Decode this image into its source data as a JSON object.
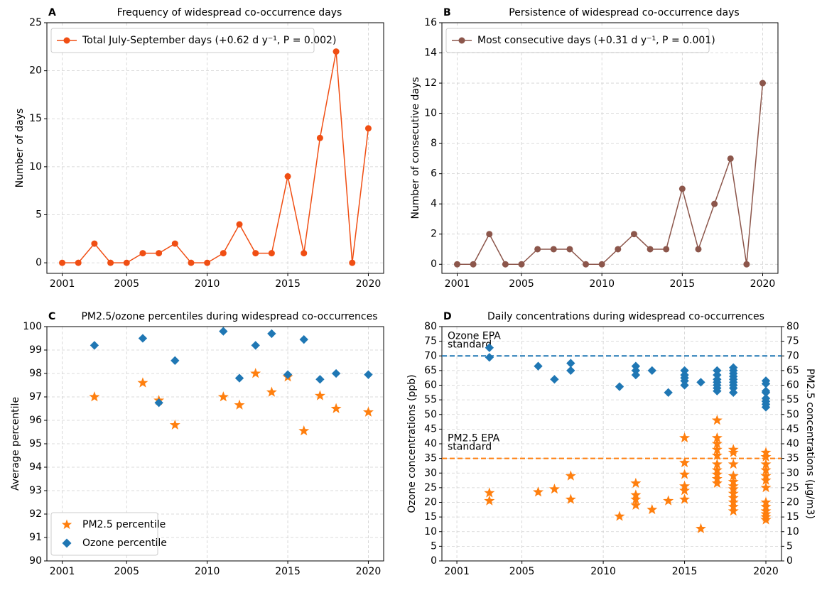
{
  "chart_data": [
    {
      "type": "line",
      "label": "A",
      "title": "Frequency of widespread co-occurrence days",
      "ylabel": "Number of days",
      "x": [
        2001,
        2002,
        2003,
        2004,
        2005,
        2006,
        2007,
        2008,
        2009,
        2010,
        2011,
        2012,
        2013,
        2014,
        2015,
        2016,
        2017,
        2018,
        2019,
        2020
      ],
      "series": [
        {
          "name": "Total July-September days (+0.62 d y⁻¹, P = 0.002)",
          "color": "#f04e13",
          "marker": "circle",
          "values": [
            0,
            0,
            2,
            0,
            0,
            1,
            1,
            2,
            0,
            0,
            1,
            4,
            1,
            1,
            9,
            1,
            13,
            22,
            0,
            14
          ]
        }
      ],
      "xlim": [
        2000.05,
        2020.95
      ],
      "xticks": [
        2001,
        2005,
        2010,
        2015,
        2020
      ],
      "ylim": [
        -1.1,
        25
      ],
      "yticks": [
        0,
        5,
        10,
        15,
        20,
        25
      ],
      "grid": true,
      "legend": "upper left"
    },
    {
      "type": "line",
      "label": "B",
      "title": "Persistence of widespread co-occurrence days",
      "ylabel": "Number of consecutive days",
      "x": [
        2001,
        2002,
        2003,
        2004,
        2005,
        2006,
        2007,
        2008,
        2009,
        2010,
        2011,
        2012,
        2013,
        2014,
        2015,
        2016,
        2017,
        2018,
        2019,
        2020
      ],
      "series": [
        {
          "name": "Most consecutive days (+0.31 d y⁻¹, P = 0.001)",
          "color": "#8c564b",
          "marker": "circle",
          "values": [
            0,
            0,
            2,
            0,
            0,
            1,
            1,
            1,
            0,
            0,
            1,
            2,
            1,
            1,
            5,
            1,
            4,
            7,
            0,
            12
          ]
        }
      ],
      "xlim": [
        2000.05,
        2020.95
      ],
      "xticks": [
        2001,
        2005,
        2010,
        2015,
        2020
      ],
      "ylim": [
        -0.6,
        16
      ],
      "yticks": [
        0,
        2,
        4,
        6,
        8,
        10,
        12,
        14,
        16
      ],
      "grid": true,
      "legend": "upper left"
    },
    {
      "type": "scatter",
      "label": "C",
      "title": "PM2.5/ozone percentiles during widespread co-occurrences",
      "ylabel": "Average percentile",
      "series": [
        {
          "name": "PM2.5 percentile",
          "color": "#ff7f0e",
          "marker": "star",
          "x": [
            2003,
            2006,
            2007,
            2008,
            2011,
            2012,
            2013,
            2014,
            2015,
            2016,
            2017,
            2018,
            2020
          ],
          "values": [
            97.0,
            97.6,
            96.85,
            95.8,
            97.0,
            96.65,
            98.0,
            97.2,
            97.85,
            95.55,
            97.05,
            96.5,
            96.35
          ]
        },
        {
          "name": "Ozone percentile",
          "color": "#1f77b4",
          "marker": "diamond",
          "x": [
            2003,
            2006,
            2007,
            2008,
            2011,
            2012,
            2013,
            2014,
            2015,
            2016,
            2017,
            2018,
            2020
          ],
          "values": [
            99.2,
            99.5,
            96.75,
            98.55,
            99.8,
            97.8,
            99.2,
            99.7,
            97.95,
            99.45,
            97.75,
            98.0,
            97.95
          ]
        }
      ],
      "xlim": [
        2000.05,
        2020.95
      ],
      "xticks": [
        2001,
        2005,
        2010,
        2015,
        2020
      ],
      "ylim": [
        90,
        100
      ],
      "yticks": [
        90,
        91,
        92,
        93,
        94,
        95,
        96,
        97,
        98,
        99,
        100
      ],
      "grid": true,
      "legend": "lower left"
    },
    {
      "type": "scatter",
      "label": "D",
      "title": "Daily concentrations during widespread co-occurrences",
      "ylabel": "Ozone concentrations (ppb)",
      "y2label": "PM2.5 concentrations (μg/m3)",
      "y_color": "#1f77b4",
      "y2_color": "#ff7f0e",
      "series": [
        {
          "color": "#1f77b4",
          "marker": "diamond",
          "axis": "y",
          "x": [
            2003,
            2003,
            2006,
            2007,
            2008,
            2008,
            2011,
            2012,
            2012,
            2012,
            2013,
            2014,
            2015,
            2015,
            2015,
            2015,
            2015,
            2016,
            2017,
            2017,
            2017,
            2017,
            2017,
            2017,
            2017,
            2018,
            2018,
            2018,
            2018,
            2018,
            2018,
            2018,
            2018,
            2018,
            2020,
            2020,
            2020,
            2020,
            2020,
            2020,
            2020,
            2020
          ],
          "values": [
            72.8,
            69.5,
            66.5,
            62,
            67.5,
            65,
            59.5,
            66.5,
            65,
            63.5,
            65,
            57.5,
            65,
            63.5,
            62.5,
            61.5,
            60,
            61,
            65,
            63.5,
            62,
            61,
            60,
            59,
            58,
            66,
            65,
            64,
            63,
            62,
            61,
            60,
            59,
            57.5,
            61.5,
            60.5,
            58,
            57.5,
            55.5,
            54.5,
            53.5,
            52.5
          ]
        },
        {
          "color": "#ff7f0e",
          "marker": "star",
          "axis": "y2",
          "x": [
            2003,
            2003,
            2006,
            2007,
            2008,
            2008,
            2011,
            2012,
            2012,
            2012,
            2012,
            2013,
            2014,
            2015,
            2015,
            2015,
            2015,
            2015,
            2015,
            2016,
            2017,
            2017,
            2017,
            2017,
            2017,
            2017,
            2017,
            2017,
            2017,
            2017,
            2018,
            2018,
            2018,
            2018,
            2018,
            2018,
            2018,
            2018,
            2018,
            2018,
            2018,
            2018,
            2020,
            2020,
            2020,
            2020,
            2020,
            2020,
            2020,
            2020,
            2020,
            2020,
            2020,
            2020,
            2020
          ],
          "values": [
            23.2,
            20.5,
            23.5,
            24.5,
            29,
            21,
            15.2,
            26.5,
            22.5,
            21,
            19,
            17.5,
            20.5,
            42,
            33.5,
            29.5,
            25.5,
            24,
            21,
            11,
            48,
            42,
            40,
            38,
            36,
            33,
            31,
            29.5,
            28,
            26.5,
            38,
            37,
            33,
            29,
            27,
            25.5,
            24.5,
            23,
            21.5,
            20,
            18.5,
            17,
            37,
            35.5,
            33,
            31,
            29,
            27.5,
            25,
            20,
            18.5,
            17,
            16,
            15,
            14
          ]
        }
      ],
      "reference_lines": [
        {
          "value": 70,
          "axis": "y",
          "color": "#1f77b4",
          "label_lines": [
            "Ozone EPA",
            "standard"
          ]
        },
        {
          "value": 35,
          "axis": "y2",
          "color": "#ff7f0e",
          "label_lines": [
            "PM2.5 EPA",
            "standard"
          ]
        }
      ],
      "xlim": [
        2000.08,
        2020.96
      ],
      "xticks": [
        2001,
        2005,
        2010,
        2015,
        2020
      ],
      "ylim": [
        0,
        80
      ],
      "yticks": [
        0,
        5,
        10,
        15,
        20,
        25,
        30,
        35,
        40,
        45,
        50,
        55,
        60,
        65,
        70,
        75,
        80
      ],
      "y2lim": [
        0,
        80
      ],
      "y2ticks": [
        0,
        5,
        10,
        15,
        20,
        25,
        30,
        35,
        40,
        45,
        50,
        55,
        60,
        65,
        70,
        75,
        80
      ],
      "grid": true
    }
  ]
}
